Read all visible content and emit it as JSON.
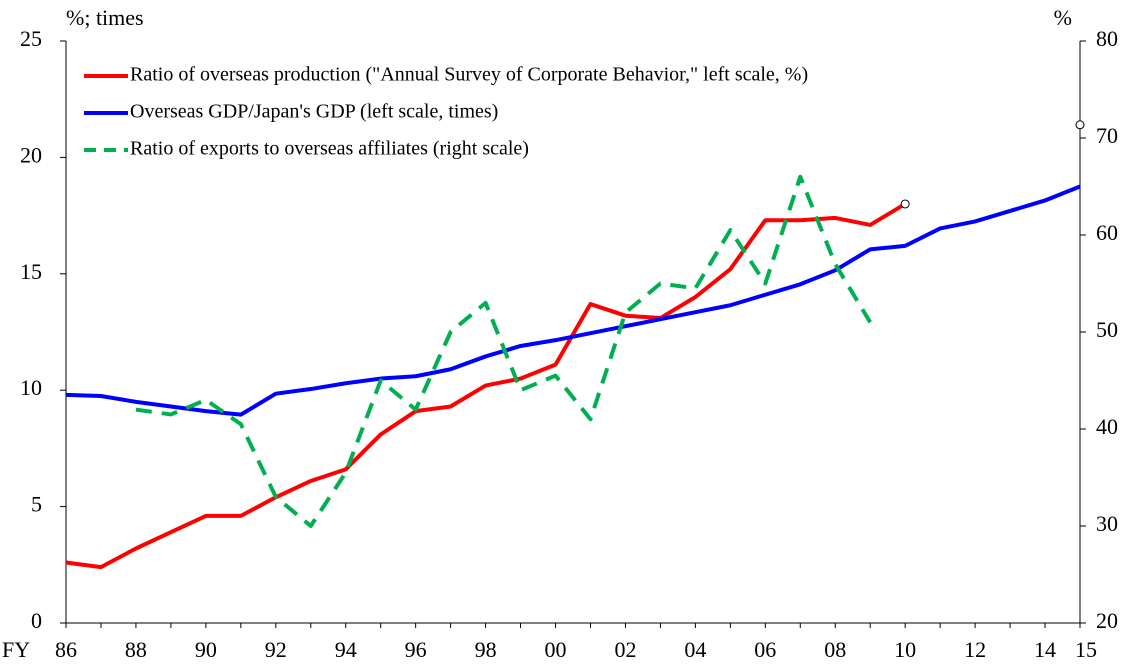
{
  "chart_data": {
    "type": "line",
    "y_label": "%; times",
    "y2_label": "%",
    "x_label": "FY",
    "categories": [
      "86",
      null,
      "88",
      null,
      "90",
      null,
      "92",
      null,
      "94",
      null,
      "96",
      null,
      "98",
      null,
      "00",
      null,
      "02",
      null,
      "04",
      null,
      "06",
      null,
      "08",
      null,
      "10",
      null,
      "12",
      null,
      "14",
      "15"
    ],
    "ylim": [
      0,
      25
    ],
    "yticks": [
      0,
      5,
      10,
      15,
      20,
      25
    ],
    "y2lim": [
      20,
      80
    ],
    "y2ticks": [
      20,
      30,
      40,
      50,
      60,
      70,
      80
    ],
    "legend": "upper left",
    "series": [
      {
        "name": "Ratio of overseas production (\"Annual Survey of Corporate Behavior,\" left scale, %)",
        "color": "#ff0000",
        "line_style": "solid",
        "values": [
          2.6,
          2.4,
          3.2,
          3.9,
          4.6,
          4.6,
          5.4,
          6.1,
          6.6,
          8.1,
          9.1,
          9.3,
          10.2,
          10.5,
          11.1,
          13.7,
          13.2,
          13.1,
          14.0,
          15.2,
          17.3,
          17.3,
          17.4,
          17.1,
          18.0,
          null,
          null,
          null,
          null,
          null
        ],
        "projection": [
          null,
          null,
          null,
          null,
          null,
          null,
          null,
          null,
          null,
          null,
          null,
          null,
          null,
          null,
          null,
          null,
          null,
          null,
          null,
          null,
          null,
          null,
          null,
          null,
          18.0,
          null,
          null,
          null,
          null,
          21.4
        ]
      },
      {
        "name": "Overseas GDP/Japan's GDP (left scale, times)",
        "color": "#0000ff",
        "line_style": "solid",
        "values": [
          9.8,
          9.75,
          9.5,
          9.3,
          9.1,
          8.95,
          9.85,
          10.05,
          10.3,
          10.5,
          10.6,
          10.9,
          11.45,
          11.9,
          12.15,
          12.45,
          12.75,
          13.05,
          13.35,
          13.65,
          14.1,
          14.55,
          15.15,
          16.05,
          16.2,
          16.95,
          17.25,
          17.7,
          18.15,
          18.75
        ]
      },
      {
        "name": "Ratio of exports to overseas affiliates (right scale)",
        "color": "#00b050",
        "line_style": "dashed",
        "axis": "y2",
        "values": [
          null,
          null,
          42,
          41.5,
          43,
          40.5,
          33,
          30,
          35.5,
          45,
          42,
          50,
          53,
          44,
          45.5,
          41,
          52,
          55,
          54.5,
          60.5,
          55,
          66,
          57,
          51,
          null,
          null,
          null,
          null,
          null,
          null
        ]
      }
    ]
  }
}
